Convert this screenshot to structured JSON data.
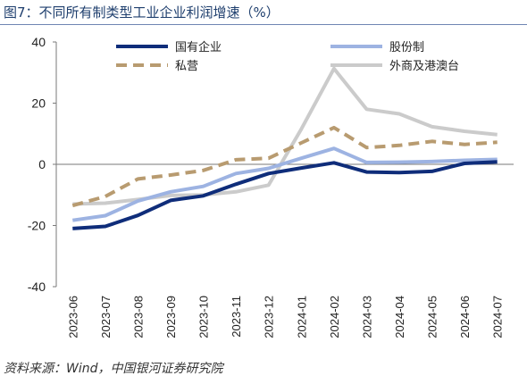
{
  "title": "图7：不同所有制类型工业企业利润增速（%）",
  "source": "资料来源：Wind，中国银河证券研究院",
  "chart_data": {
    "type": "line",
    "title": "图7：不同所有制类型工业企业利润增速（%）",
    "xlabel": "",
    "ylabel": "",
    "categories": [
      "2023-06",
      "2023-07",
      "2023-08",
      "2023-09",
      "2023-10",
      "2023-11",
      "2023-12",
      "2024-01",
      "2024-02",
      "2024-03",
      "2024-04",
      "2024-05",
      "2024-06",
      "2024-07"
    ],
    "ylim": [
      -40,
      40
    ],
    "yticks": [
      -40,
      -20,
      0,
      20,
      40
    ],
    "grid": false,
    "legend_placement": "top",
    "series": [
      {
        "name": "国有企业",
        "color": "#0f2d7a",
        "dash": "solid",
        "width": 4,
        "values": [
          -21.0,
          -20.3,
          -16.7,
          -11.8,
          -10.3,
          -6.5,
          -3.0,
          -1.2,
          0.5,
          -2.5,
          -2.7,
          -2.3,
          0.3,
          0.8
        ]
      },
      {
        "name": "股份制",
        "color": "#9db3e2",
        "dash": "solid",
        "width": 4,
        "values": [
          -18.3,
          -16.8,
          -12.0,
          -9.0,
          -7.2,
          -3.0,
          -1.3,
          2.0,
          5.2,
          0.6,
          0.7,
          0.9,
          1.3,
          1.6
        ]
      },
      {
        "name": "私营",
        "color": "#b89b70",
        "dash": "dashed",
        "width": 4,
        "values": [
          -13.5,
          -10.5,
          -4.8,
          -3.5,
          -2.0,
          1.5,
          2.0,
          7.0,
          12.0,
          5.5,
          6.2,
          7.5,
          6.5,
          7.2
        ]
      },
      {
        "name": "外商及港澳台",
        "color": "#cbcbcb",
        "dash": "solid",
        "width": 4,
        "values": [
          -13.0,
          -12.7,
          -11.5,
          -10.2,
          -10.0,
          -9.0,
          -6.8,
          11.5,
          31.3,
          18.0,
          16.5,
          12.3,
          10.8,
          9.7
        ]
      }
    ]
  }
}
